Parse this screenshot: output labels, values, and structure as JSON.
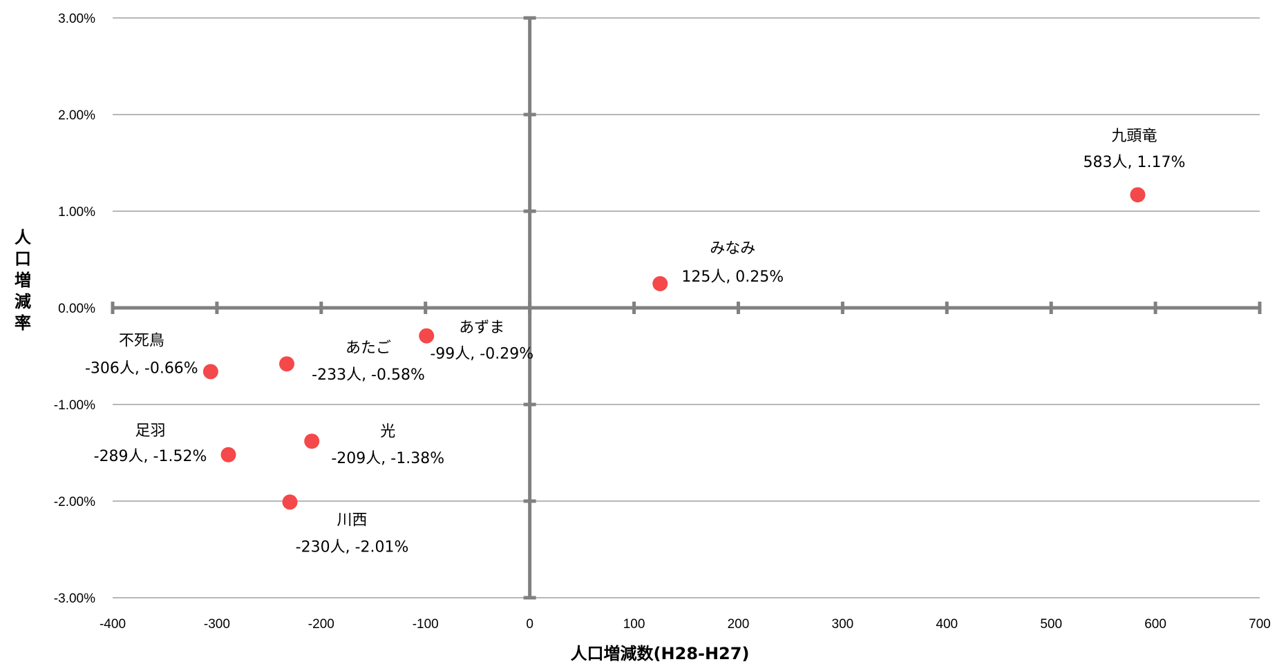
{
  "chart_data": {
    "type": "scatter",
    "xlabel": "人口増減数(H28-H27)",
    "ylabel": "人口増減率",
    "xlim": [
      -400,
      700
    ],
    "ylim": [
      -3.0,
      3.0
    ],
    "x_ticks": [
      "-400",
      "-300",
      "-200",
      "-100",
      "0",
      "100",
      "200",
      "300",
      "400",
      "500",
      "600",
      "700"
    ],
    "y_ticks": [
      "3.00%",
      "2.00%",
      "1.00%",
      "0.00%",
      "-1.00%",
      "-2.00%",
      "-3.00%"
    ],
    "x_tick_values": [
      -400,
      -300,
      -200,
      -100,
      0,
      100,
      200,
      300,
      400,
      500,
      600,
      700
    ],
    "y_tick_values": [
      3,
      2,
      1,
      0,
      -1,
      -2,
      -3
    ],
    "grid": true,
    "legend": "none",
    "marker_color": "#f4484a",
    "points": [
      {
        "name": "九頭竜",
        "x": 583,
        "y": 1.17,
        "value_label": "583人, 1.17%"
      },
      {
        "name": "みなみ",
        "x": 125,
        "y": 0.25,
        "value_label": "125人, 0.25%"
      },
      {
        "name": "あずま",
        "x": -99,
        "y": -0.29,
        "value_label": "-99人, -0.29%"
      },
      {
        "name": "あたご",
        "x": -233,
        "y": -0.58,
        "value_label": "-233人, -0.58%"
      },
      {
        "name": "不死鳥",
        "x": -306,
        "y": -0.66,
        "value_label": "-306人, -0.66%"
      },
      {
        "name": "足羽",
        "x": -289,
        "y": -1.52,
        "value_label": "-289人, -1.52%"
      },
      {
        "name": "光",
        "x": -209,
        "y": -1.38,
        "value_label": "-209人, -1.38%"
      },
      {
        "name": "川西",
        "x": -230,
        "y": -2.01,
        "value_label": "-230人, -2.01%"
      }
    ]
  }
}
